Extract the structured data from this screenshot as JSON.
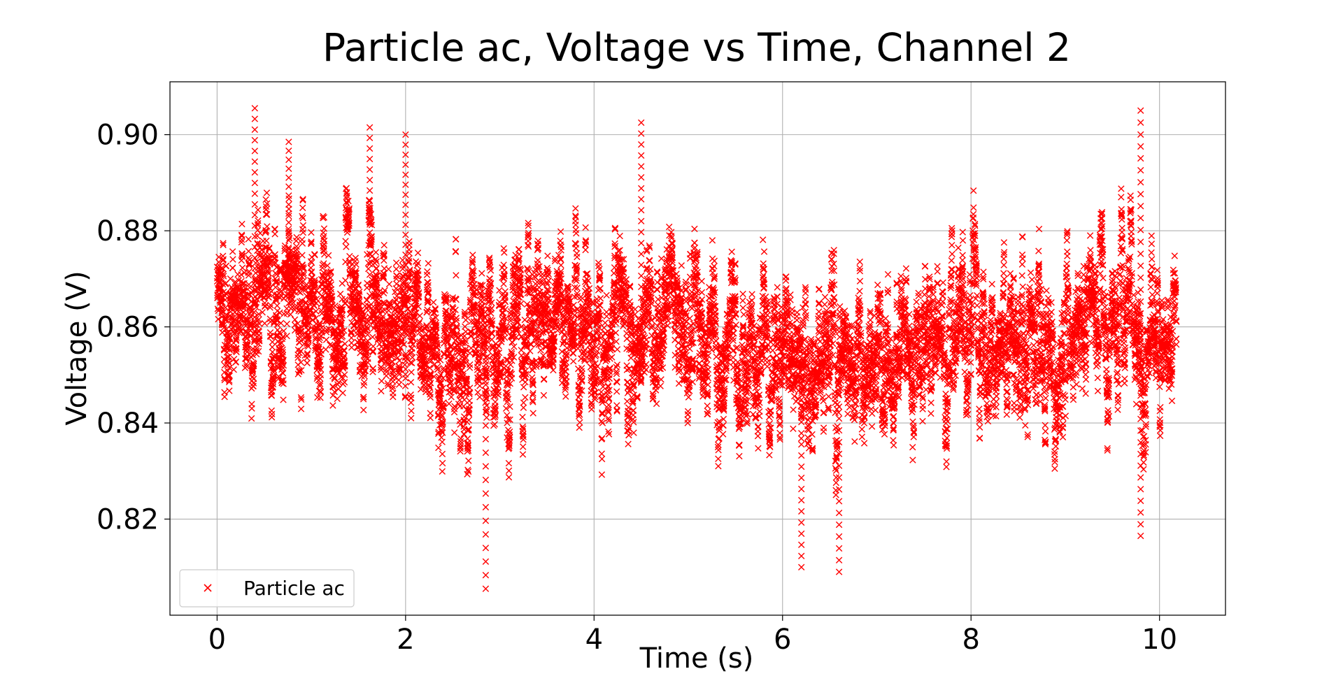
{
  "chart_data": {
    "type": "scatter",
    "title": "Particle ac, Voltage vs Time, Channel 2",
    "xlabel": "Time (s)",
    "ylabel": "Voltage (V)",
    "xlim": [
      -0.5,
      10.7
    ],
    "ylim": [
      0.8,
      0.911
    ],
    "xticks": [
      0,
      2,
      4,
      6,
      8,
      10
    ],
    "xtick_labels": [
      "0",
      "2",
      "4",
      "6",
      "8",
      "10"
    ],
    "yticks": [
      0.82,
      0.84,
      0.86,
      0.88,
      0.9
    ],
    "ytick_labels": [
      "0.82",
      "0.84",
      "0.86",
      "0.88",
      "0.90"
    ],
    "grid": true,
    "legend_position": "lower-left",
    "marker": "x",
    "series": [
      {
        "name": "Particle ac",
        "color": "#ff0000",
        "x_range": [
          0,
          10.18
        ],
        "approx_point_count": 10000,
        "rolling_mean_profile": [
          [
            0.0,
            0.8635
          ],
          [
            0.5,
            0.866
          ],
          [
            1.0,
            0.864
          ],
          [
            1.5,
            0.862
          ],
          [
            2.0,
            0.8625
          ],
          [
            2.5,
            0.8575
          ],
          [
            3.0,
            0.856
          ],
          [
            3.5,
            0.864
          ],
          [
            4.0,
            0.859
          ],
          [
            4.5,
            0.8615
          ],
          [
            5.0,
            0.86
          ],
          [
            5.5,
            0.852
          ],
          [
            6.0,
            0.851
          ],
          [
            6.5,
            0.853
          ],
          [
            7.0,
            0.854
          ],
          [
            7.5,
            0.857
          ],
          [
            8.0,
            0.856
          ],
          [
            8.5,
            0.857
          ],
          [
            9.0,
            0.8595
          ],
          [
            9.5,
            0.8615
          ],
          [
            10.0,
            0.8595
          ],
          [
            10.18,
            0.8585
          ]
        ],
        "typical_spread_sd": 0.0095,
        "extremes": [
          {
            "x": 0.4,
            "y": 0.9055
          },
          {
            "x": 0.76,
            "y": 0.8985
          },
          {
            "x": 1.62,
            "y": 0.9015
          },
          {
            "x": 2.0,
            "y": 0.9
          },
          {
            "x": 2.85,
            "y": 0.8055
          },
          {
            "x": 4.5,
            "y": 0.9025
          },
          {
            "x": 6.2,
            "y": 0.81
          },
          {
            "x": 6.6,
            "y": 0.809
          },
          {
            "x": 9.8,
            "y": 0.905
          },
          {
            "x": 9.8,
            "y": 0.8165
          }
        ]
      }
    ]
  }
}
